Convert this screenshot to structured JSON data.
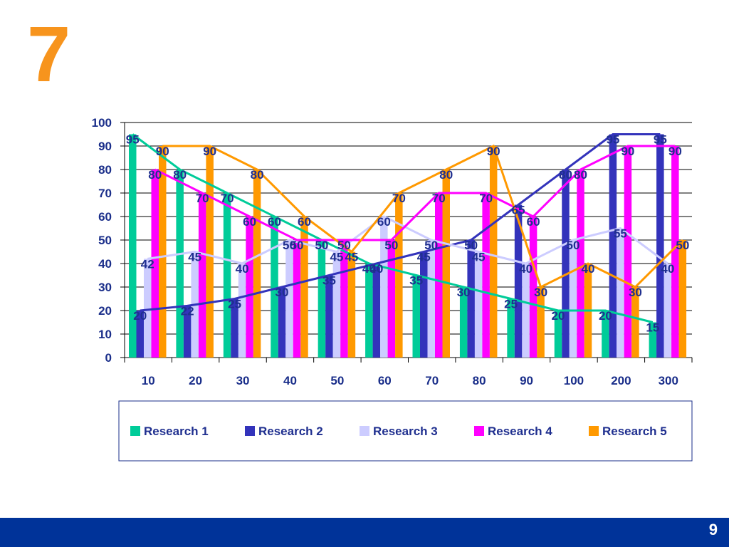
{
  "slide": {
    "title": "7",
    "page_number": "9"
  },
  "colors": {
    "title": "#f7941d",
    "footer": "#003399",
    "text": "#1f2f8f",
    "research_1": "#00cc99",
    "research_2": "#3333bb",
    "research_3": "#ccccff",
    "research_4": "#ff00ff",
    "research_5": "#ff9900"
  },
  "chart_data": {
    "type": "bar",
    "title": "",
    "xlabel": "",
    "ylabel": "",
    "ylim": [
      0,
      100
    ],
    "yticks": [
      "0",
      "10",
      "20",
      "30",
      "40",
      "50",
      "60",
      "70",
      "80",
      "90",
      "100"
    ],
    "categories": [
      "10",
      "20",
      "30",
      "40",
      "50",
      "60",
      "70",
      "80",
      "90",
      "100",
      "200",
      "300"
    ],
    "series": [
      {
        "name": "Research 1",
        "color": "#00cc99",
        "line_color": "#00cc99",
        "values": [
          95,
          80,
          70,
          60,
          50,
          40,
          35,
          30,
          25,
          20,
          20,
          15
        ]
      },
      {
        "name": "Research 2",
        "color": "#3333bb",
        "line_color": "#3333bb",
        "values": [
          20,
          22,
          25,
          30,
          35,
          40,
          45,
          50,
          65,
          80,
          95,
          95
        ]
      },
      {
        "name": "Research 3",
        "color": "#ccccff",
        "line_color": "#ccccff",
        "values": [
          42,
          45,
          40,
          50,
          45,
          60,
          50,
          45,
          40,
          50,
          55,
          40
        ]
      },
      {
        "name": "Research 4",
        "color": "#ff00ff",
        "line_color": "#ff00ff",
        "values": [
          80,
          70,
          60,
          50,
          50,
          50,
          70,
          70,
          60,
          80,
          90,
          90
        ]
      },
      {
        "name": "Research 5",
        "color": "#ff9900",
        "line_color": "#ff9900",
        "values": [
          90,
          90,
          80,
          60,
          45,
          70,
          80,
          90,
          30,
          40,
          30,
          50
        ]
      }
    ],
    "legend": {
      "position": "bottom"
    },
    "grid": true
  }
}
